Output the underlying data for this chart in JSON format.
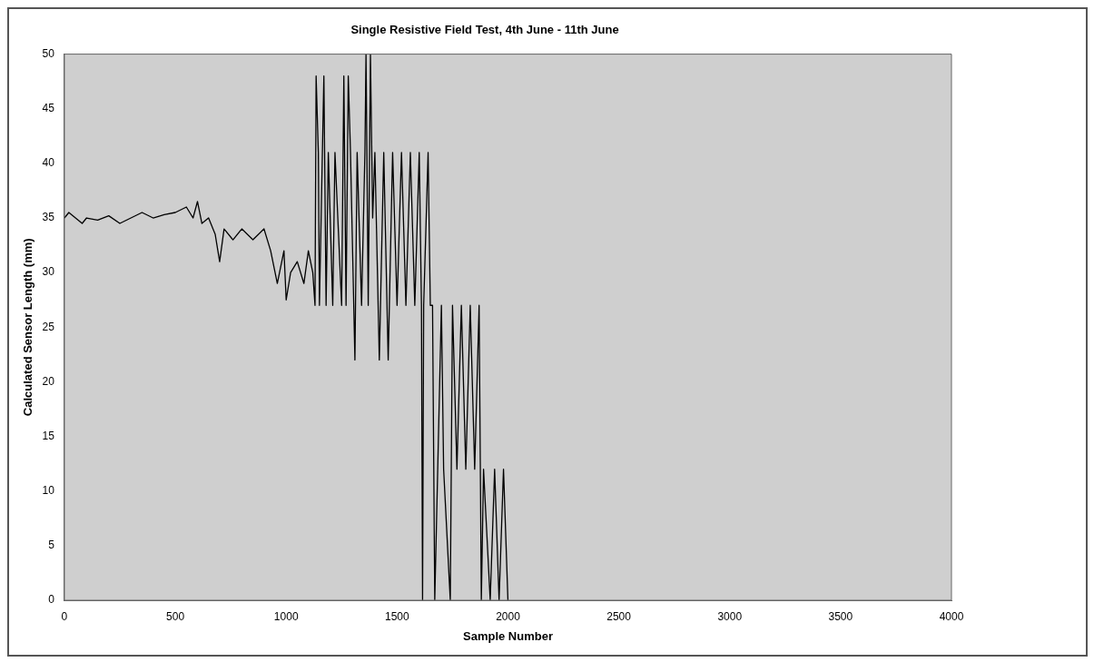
{
  "chart_data": {
    "type": "line",
    "title": "Single Resistive Field Test, 4th June - 11th June",
    "xlabel": "Sample Number",
    "ylabel": "Calculated Sensor Length (mm)",
    "x": [
      0,
      20,
      50,
      80,
      100,
      150,
      200,
      250,
      300,
      350,
      400,
      450,
      500,
      550,
      580,
      600,
      620,
      650,
      680,
      700,
      720,
      760,
      800,
      850,
      900,
      930,
      960,
      990,
      1000,
      1020,
      1050,
      1080,
      1100,
      1120,
      1130,
      1135,
      1145,
      1150,
      1170,
      1180,
      1190,
      1210,
      1220,
      1250,
      1260,
      1270,
      1280,
      1290,
      1310,
      1320,
      1340,
      1355,
      1360,
      1370,
      1380,
      1390,
      1400,
      1420,
      1440,
      1460,
      1480,
      1500,
      1520,
      1540,
      1560,
      1580,
      1600,
      1610,
      1615,
      1620,
      1640,
      1650,
      1660,
      1670,
      1700,
      1710,
      1740,
      1750,
      1770,
      1790,
      1810,
      1830,
      1850,
      1870,
      1880,
      1890,
      1920,
      1940,
      1960,
      1980,
      2000
    ],
    "series": [
      {
        "color": "#000000",
        "values": [
          35,
          35.5,
          35,
          34.5,
          35,
          34.8,
          35.2,
          34.5,
          35,
          35.5,
          35,
          35.3,
          35.5,
          36,
          35,
          36.5,
          34.5,
          35,
          33.5,
          31,
          34,
          33,
          34,
          33,
          34,
          32,
          29,
          32,
          27.5,
          30,
          31,
          29,
          32,
          30,
          27,
          48,
          41,
          27,
          48,
          27,
          41,
          27,
          41,
          27,
          48,
          27,
          48,
          41,
          22,
          41,
          27,
          41,
          50,
          27,
          50,
          35,
          41,
          22,
          41,
          22,
          41,
          27,
          41,
          27,
          41,
          27,
          41,
          27,
          0,
          27,
          41,
          27,
          27,
          0,
          27,
          12,
          0,
          27,
          12,
          27,
          12,
          27,
          12,
          27,
          0,
          12,
          0,
          12,
          0,
          12,
          0
        ]
      }
    ],
    "xlim": [
      0,
      4000
    ],
    "xticks": [
      0,
      500,
      1000,
      1500,
      2000,
      2500,
      3000,
      3500,
      4000
    ],
    "ylim": [
      0,
      50
    ],
    "yticks": [
      0,
      5,
      10,
      15,
      20,
      25,
      30,
      35,
      40,
      45,
      50
    ],
    "grid": false,
    "legend": false,
    "marker": "none",
    "line_style": "solid"
  }
}
